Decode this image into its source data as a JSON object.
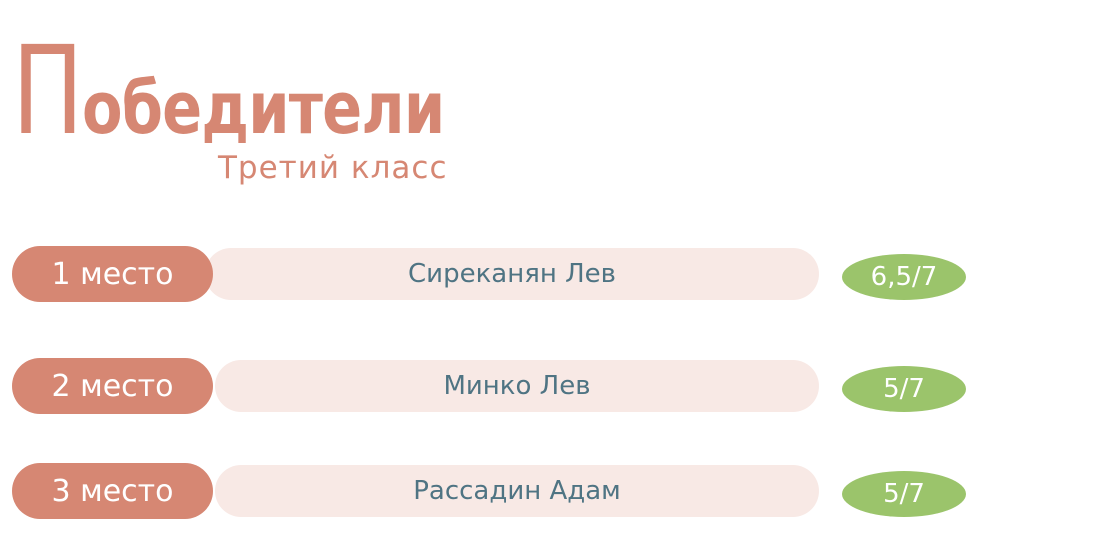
{
  "title": {
    "first_letter": "П",
    "rest": "обедители",
    "subtitle": "Третий класс"
  },
  "colors": {
    "accent": "#d68773",
    "bar": "#f8e9e5",
    "name_text": "#4f7483",
    "score": "#9bc46b"
  },
  "winners": [
    {
      "place": "1 место",
      "name": "Сиреканян Лев",
      "score": "6,5/7"
    },
    {
      "place": "2 место",
      "name": "Минко Лев",
      "score": "5/7"
    },
    {
      "place": "3 место",
      "name": "Рассадин Адам",
      "score": "5/7"
    }
  ]
}
